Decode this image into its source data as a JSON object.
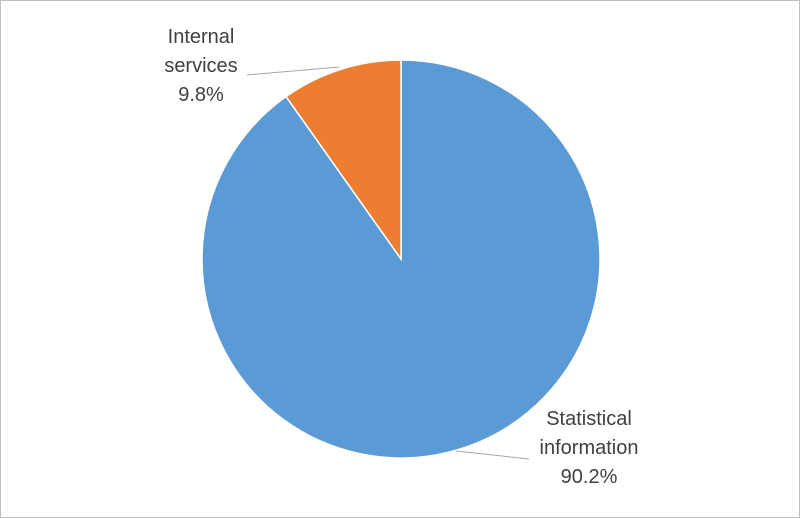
{
  "chart_data": {
    "type": "pie",
    "categories": [
      "Statistical information",
      "Internal services"
    ],
    "values": [
      90.2,
      9.8
    ],
    "labels": [
      {
        "line1": "Statistical",
        "line2": "information",
        "percent": "90.2%"
      },
      {
        "line1": "Internal",
        "line2": "services",
        "percent": "9.8%"
      }
    ],
    "colors": [
      "#5b9bd5",
      "#ed7d31"
    ],
    "legend": "none"
  }
}
